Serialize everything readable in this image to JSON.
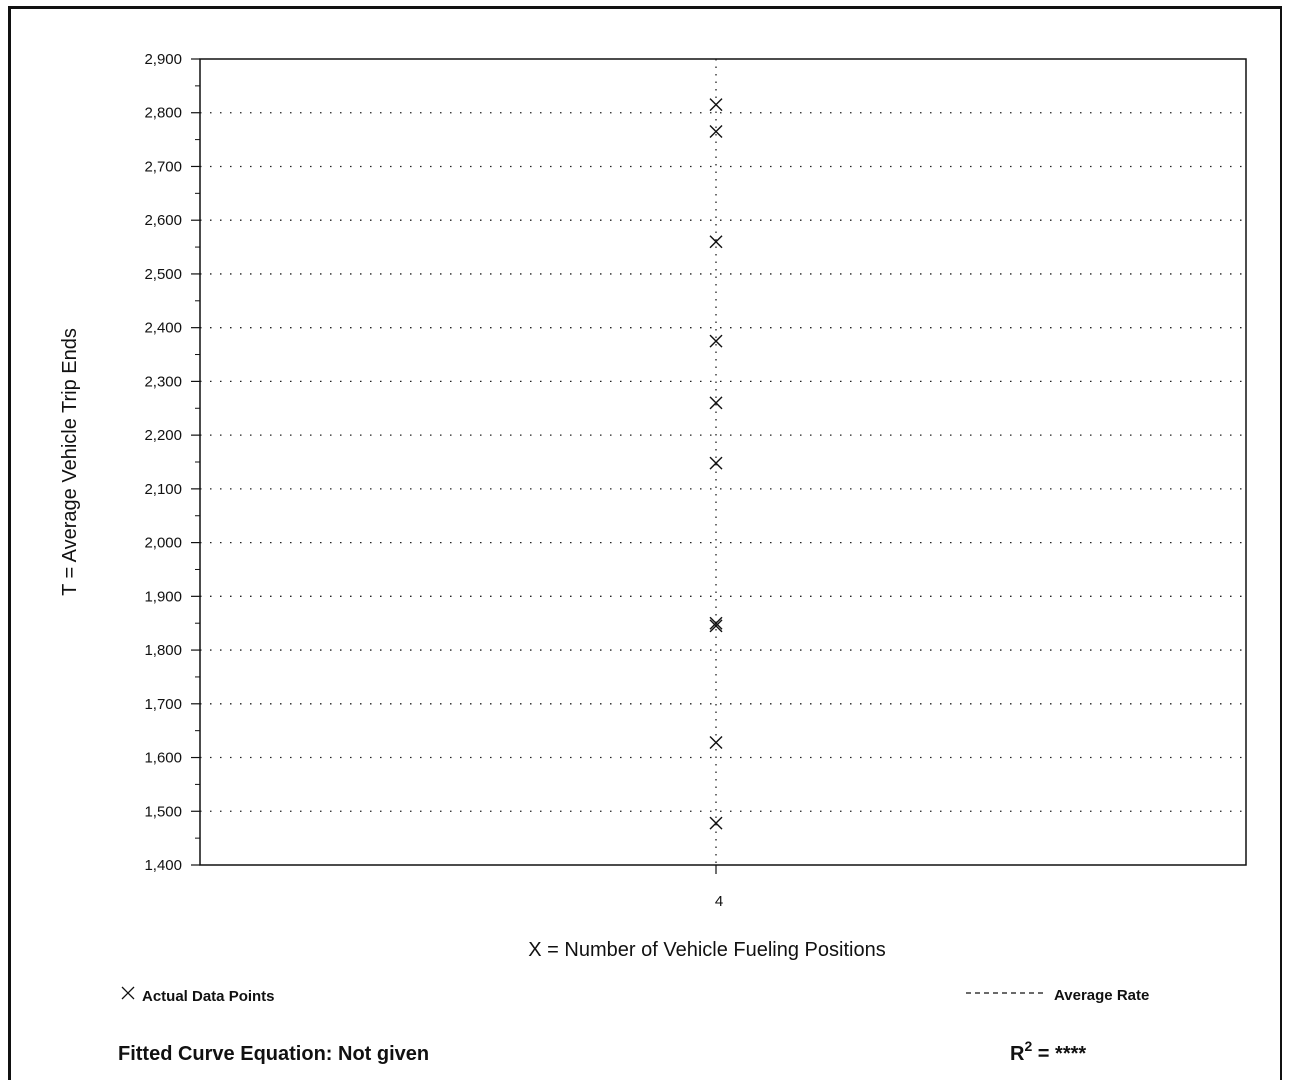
{
  "chart_data": {
    "type": "scatter",
    "xlabel": "X = Number of Vehicle Fueling Positions",
    "ylabel": "T = Average Vehicle Trip Ends",
    "x_ticks": [
      "4"
    ],
    "y_ticks": [
      "1,400",
      "1,500",
      "1,600",
      "1,700",
      "1,800",
      "1,900",
      "2,000",
      "2,100",
      "2,200",
      "2,300",
      "2,400",
      "2,500",
      "2,600",
      "2,700",
      "2,800",
      "2,900"
    ],
    "ylim": [
      1400,
      2900
    ],
    "grid": true,
    "series": [
      {
        "name": "Actual Data Points",
        "points": [
          {
            "x": 4,
            "y": 2815
          },
          {
            "x": 4,
            "y": 2765
          },
          {
            "x": 4,
            "y": 2560
          },
          {
            "x": 4,
            "y": 2375
          },
          {
            "x": 4,
            "y": 2260
          },
          {
            "x": 4,
            "y": 2148
          },
          {
            "x": 4,
            "y": 1850
          },
          {
            "x": 4,
            "y": 1845
          },
          {
            "x": 4,
            "y": 1628
          },
          {
            "x": 4,
            "y": 1478
          }
        ]
      }
    ],
    "legend": {
      "markers_label": "Actual Data Points",
      "average_label": "Average Rate"
    },
    "footer": {
      "equation": "Fitted Curve Equation:  Not given",
      "r2_prefix": "R",
      "r2_exp": "2",
      "r2_suffix": " = ****"
    }
  }
}
